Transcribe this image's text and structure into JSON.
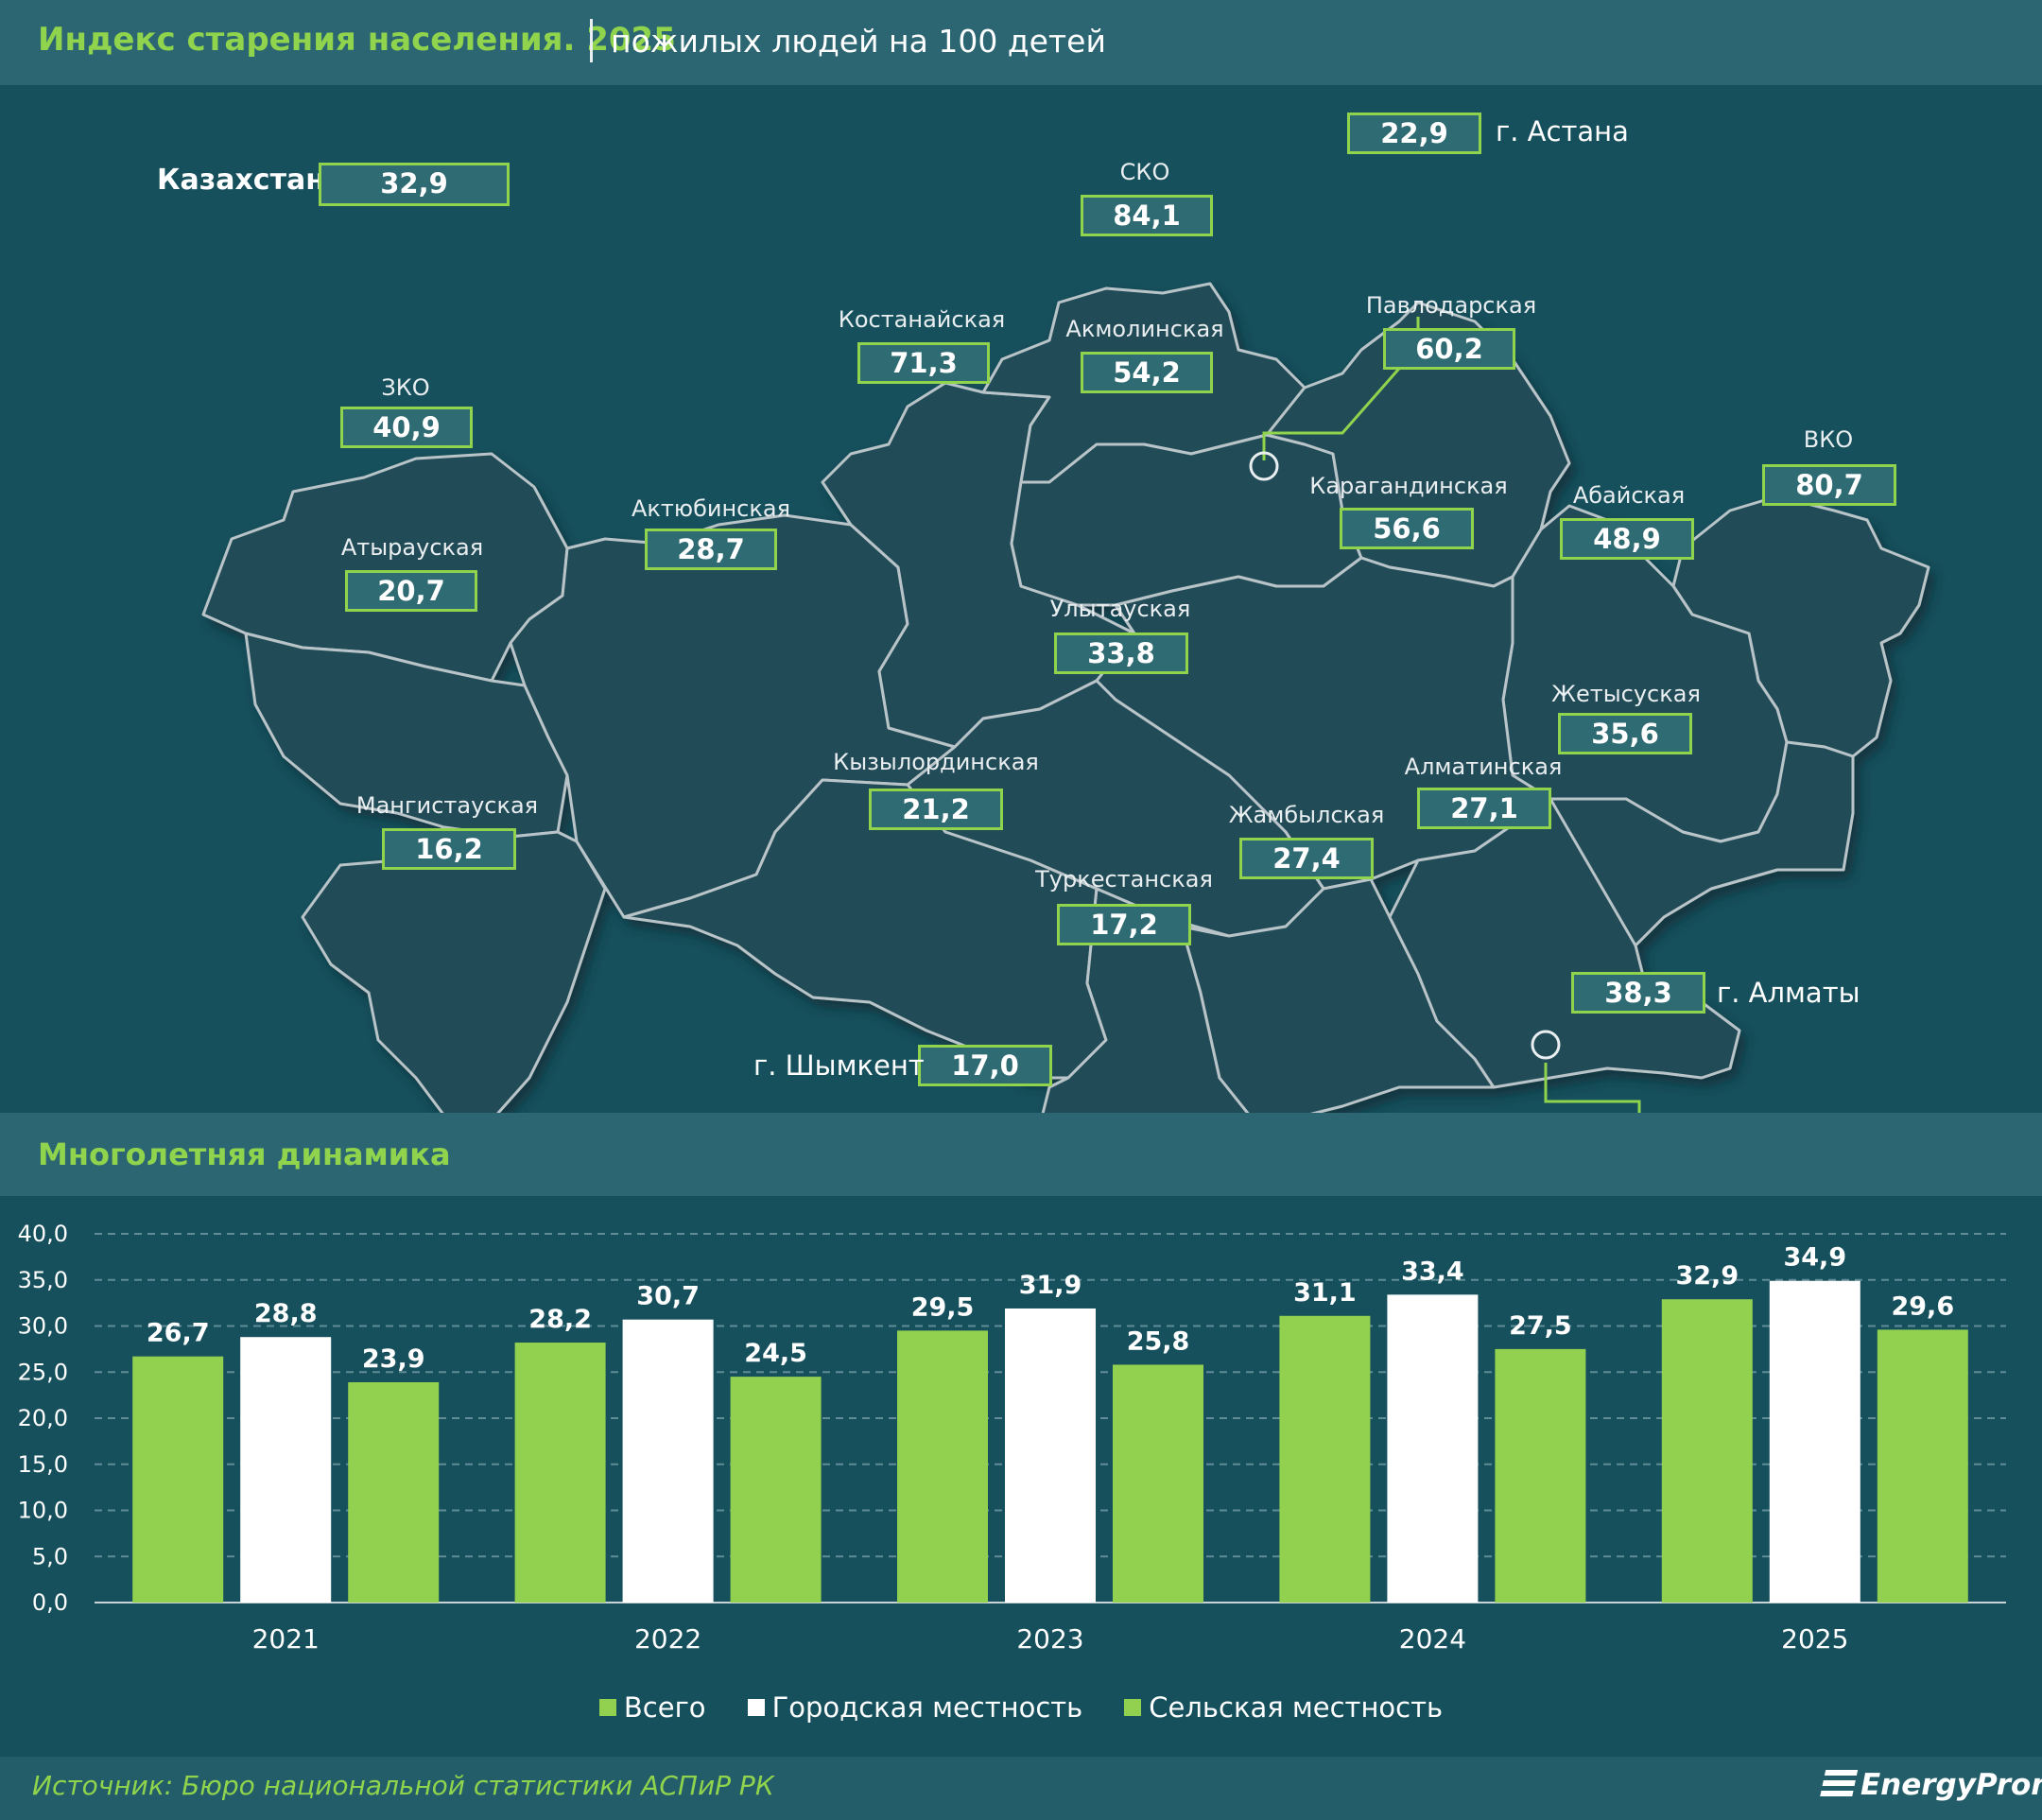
{
  "header": {
    "title": "Индекс старения населения. 2025",
    "subtitle": "пожилых людей на 100 детей"
  },
  "map": {
    "country": {
      "name": "Казахстан",
      "value": "32,9"
    },
    "regions": [
      {
        "name": "СКО",
        "value": "84,1"
      },
      {
        "name": "Костанайская",
        "value": "71,3"
      },
      {
        "name": "Акмолинская",
        "value": "54,2"
      },
      {
        "name": "Павлодарская",
        "value": "60,2"
      },
      {
        "name": "ЗКО",
        "value": "40,9"
      },
      {
        "name": "Актюбинская",
        "value": "28,7"
      },
      {
        "name": "Атырауская",
        "value": "20,7"
      },
      {
        "name": "Карагандинская",
        "value": "56,6"
      },
      {
        "name": "Абайская",
        "value": "48,9"
      },
      {
        "name": "ВКО",
        "value": "80,7"
      },
      {
        "name": "Улытауская",
        "value": "33,8"
      },
      {
        "name": "Жетысуская",
        "value": "35,6"
      },
      {
        "name": "Мангистауская",
        "value": "16,2"
      },
      {
        "name": "Кызылординская",
        "value": "21,2"
      },
      {
        "name": "Алматинская",
        "value": "27,1"
      },
      {
        "name": "Жамбылская",
        "value": "27,4"
      },
      {
        "name": "Туркестанская",
        "value": "17,2"
      }
    ],
    "cities": [
      {
        "name": "г. Астана",
        "value": "22,9"
      },
      {
        "name": "г. Алматы",
        "value": "38,3"
      },
      {
        "name": "г. Шымкент",
        "value": "17,0"
      }
    ]
  },
  "dynamics_title": "Многолетняя динамика",
  "chart_data": {
    "type": "bar",
    "title": "Многолетняя динамика",
    "categories": [
      "2021",
      "2022",
      "2023",
      "2024",
      "2025"
    ],
    "series": [
      {
        "name": "Всего",
        "color": "#92d050",
        "values": [
          26.7,
          28.2,
          29.5,
          31.1,
          32.9
        ]
      },
      {
        "name": "Городская местность",
        "color": "#ffffff",
        "values": [
          28.8,
          30.7,
          31.9,
          33.4,
          34.9
        ]
      },
      {
        "name": "Сельская местность",
        "color": "#92d050",
        "values": [
          23.9,
          24.5,
          25.8,
          27.5,
          29.6
        ]
      }
    ],
    "ylim": [
      0,
      40
    ],
    "yticks": [
      "0,0",
      "5,0",
      "10,0",
      "15,0",
      "20,0",
      "25,0",
      "30,0",
      "35,0",
      "40,0"
    ],
    "xlabel": "",
    "ylabel": "",
    "grid": true,
    "legend": "bottom-center"
  },
  "source": "Источник: Бюро национальной статистики АСПиР РК",
  "brand": "EnergyProm",
  "colors": {
    "background": "#16505c",
    "band": "#2b6672",
    "accent_green": "#92d050",
    "map_fill": "#244c58",
    "map_border": "#b8c4c8"
  }
}
